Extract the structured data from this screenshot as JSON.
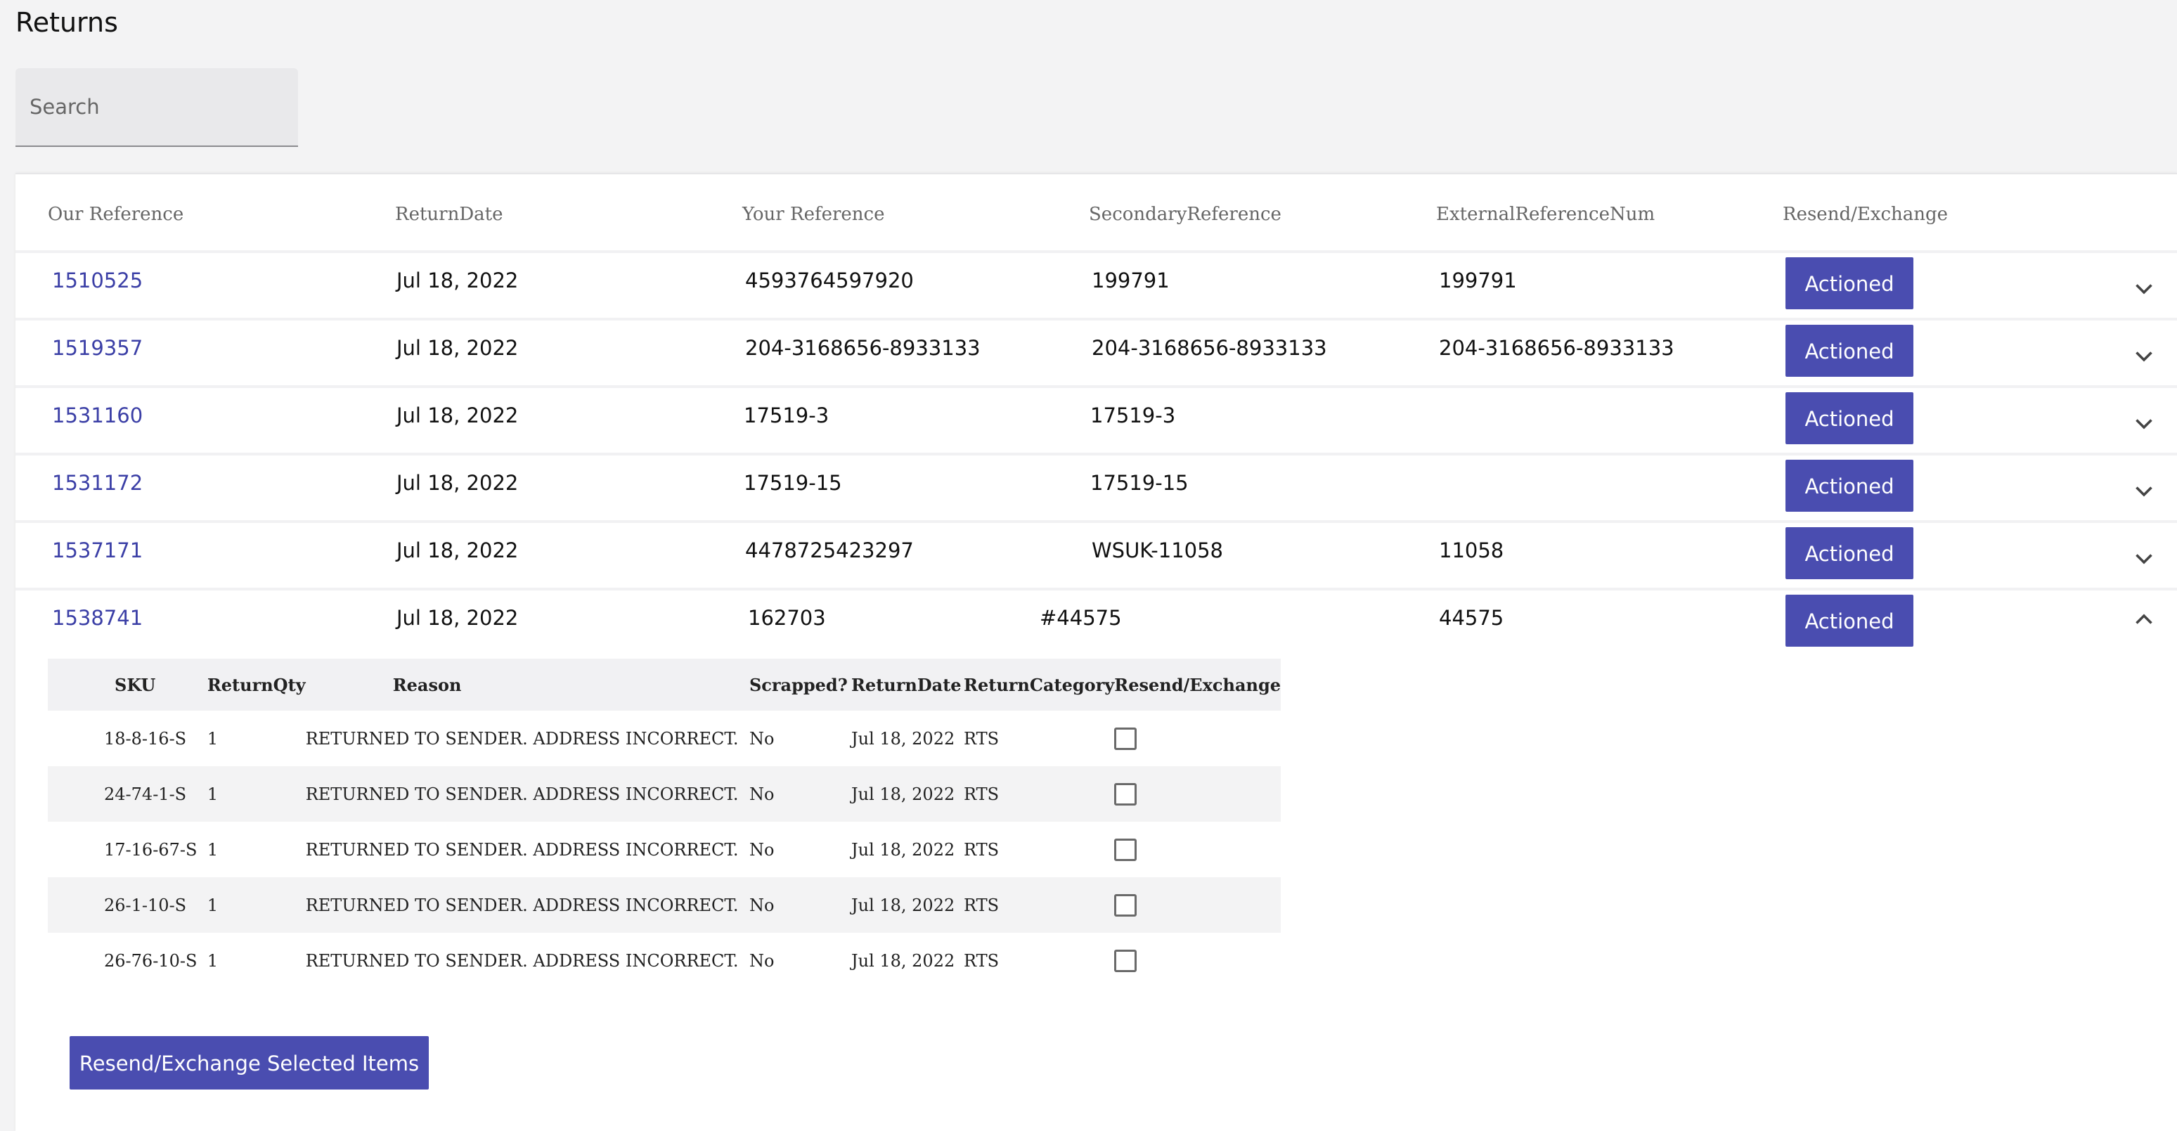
{
  "page": {
    "title": "Returns"
  },
  "search": {
    "placeholder": "Search",
    "value": ""
  },
  "table": {
    "columns": [
      "Our Reference",
      "ReturnDate",
      "Your Reference",
      "SecondaryReference",
      "ExternalReferenceNum",
      "Resend/Exchange"
    ],
    "rows": [
      {
        "our_ref": "1510525",
        "return_date": "Jul 18, 2022",
        "your_ref": "4593764597920",
        "secondary_ref": "199791",
        "external_ref": "199791",
        "action_label": "Actioned",
        "expanded": false
      },
      {
        "our_ref": "1519357",
        "return_date": "Jul 18, 2022",
        "your_ref": "204-3168656-8933133",
        "secondary_ref": "204-3168656-8933133",
        "external_ref": "204-3168656-8933133",
        "action_label": "Actioned",
        "expanded": false
      },
      {
        "our_ref": "1531160",
        "return_date": "Jul 18, 2022",
        "your_ref": "17519-3",
        "secondary_ref": "17519-3",
        "external_ref": "",
        "action_label": "Actioned",
        "expanded": false
      },
      {
        "our_ref": "1531172",
        "return_date": "Jul 18, 2022",
        "your_ref": "17519-15",
        "secondary_ref": "17519-15",
        "external_ref": "",
        "action_label": "Actioned",
        "expanded": false
      },
      {
        "our_ref": "1537171",
        "return_date": "Jul 18, 2022",
        "your_ref": "4478725423297",
        "secondary_ref": "WSUK-11058",
        "external_ref": "11058",
        "action_label": "Actioned",
        "expanded": false
      },
      {
        "our_ref": "1538741",
        "return_date": "Jul 18, 2022",
        "your_ref": "162703",
        "secondary_ref": "#44575",
        "external_ref": "44575",
        "action_label": "Actioned",
        "expanded": true
      }
    ]
  },
  "detail": {
    "columns": [
      "SKU",
      "ReturnQty",
      "Reason",
      "Scrapped?",
      "ReturnDate",
      "ReturnCategory",
      "Resend/Exchange"
    ],
    "items": [
      {
        "sku": "18-8-16-S",
        "qty": "1",
        "reason": "RETURNED TO SENDER. ADDRESS INCORRECT.",
        "scrapped": "No",
        "return_date": "Jul 18, 2022",
        "category": "RTS",
        "checked": false
      },
      {
        "sku": "24-74-1-S",
        "qty": "1",
        "reason": "RETURNED TO SENDER. ADDRESS INCORRECT.",
        "scrapped": "No",
        "return_date": "Jul 18, 2022",
        "category": "RTS",
        "checked": false
      },
      {
        "sku": "17-16-67-S",
        "qty": "1",
        "reason": "RETURNED TO SENDER. ADDRESS INCORRECT.",
        "scrapped": "No",
        "return_date": "Jul 18, 2022",
        "category": "RTS",
        "checked": false
      },
      {
        "sku": "26-1-10-S",
        "qty": "1",
        "reason": "RETURNED TO SENDER. ADDRESS INCORRECT.",
        "scrapped": "No",
        "return_date": "Jul 18, 2022",
        "category": "RTS",
        "checked": false
      },
      {
        "sku": "26-76-10-S",
        "qty": "1",
        "reason": "RETURNED TO SENDER. ADDRESS INCORRECT.",
        "scrapped": "No",
        "return_date": "Jul 18, 2022",
        "category": "RTS",
        "checked": false
      }
    ],
    "submit_label": "Resend/Exchange Selected Items"
  }
}
